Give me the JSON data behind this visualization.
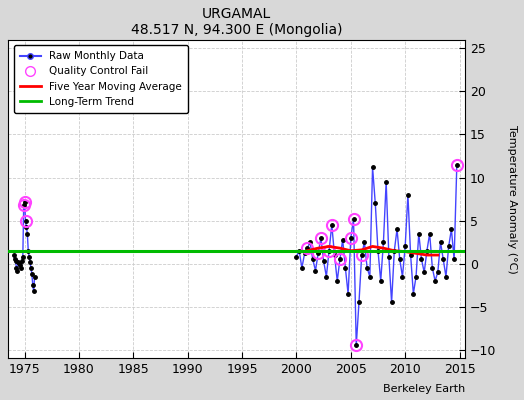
{
  "title": "URGAMAL",
  "subtitle": "48.517 N, 94.300 E (Mongolia)",
  "ylabel": "Temperature Anomaly (°C)",
  "xlabel_credit": "Berkeley Earth",
  "xlim": [
    1973.5,
    2015.5
  ],
  "ylim": [
    -11,
    26
  ],
  "yticks_right": [
    -10,
    -5,
    0,
    5,
    10,
    15,
    20,
    25
  ],
  "xticks": [
    1975,
    1980,
    1985,
    1990,
    1995,
    2000,
    2005,
    2010,
    2015
  ],
  "plot_bg": "#ffffff",
  "fig_bg": "#d8d8d8",
  "grid_color": "#cccccc",
  "raw_line_color": "#4444ff",
  "raw_marker_color": "#000000",
  "qc_fail_color": "#ff44ff",
  "moving_avg_color": "#ff0000",
  "trend_color": "#00bb00",
  "trend_y": 1.5,
  "early_years": [
    1974.0,
    1974.083,
    1974.167,
    1974.25,
    1974.333,
    1974.417,
    1974.5,
    1974.583,
    1974.667,
    1974.75,
    1974.833,
    1974.917,
    1975.0,
    1975.083,
    1975.167,
    1975.25,
    1975.333,
    1975.417,
    1975.5,
    1975.583,
    1975.667,
    1975.75,
    1975.833,
    1975.917
  ],
  "early_vals": [
    1.0,
    0.5,
    0.3,
    -0.5,
    -0.8,
    0.2,
    0.1,
    -0.2,
    -0.5,
    0.3,
    0.8,
    6.8,
    7.2,
    5.0,
    4.2,
    3.5,
    1.5,
    0.8,
    0.2,
    -0.5,
    -1.2,
    -2.5,
    -3.2,
    -1.5
  ],
  "qc_early_years": [
    1974.917,
    1975.0,
    1975.083
  ],
  "qc_early_vals": [
    6.8,
    7.2,
    5.0
  ],
  "main_years": [
    2000.0,
    2000.25,
    2000.5,
    2000.75,
    2001.0,
    2001.25,
    2001.5,
    2001.75,
    2002.0,
    2002.25,
    2002.5,
    2002.75,
    2003.0,
    2003.25,
    2003.5,
    2003.75,
    2004.0,
    2004.25,
    2004.5,
    2004.75,
    2005.0,
    2005.25,
    2005.5,
    2005.75,
    2006.0,
    2006.25,
    2006.5,
    2006.75,
    2007.0,
    2007.25,
    2007.5,
    2007.75,
    2008.0,
    2008.25,
    2008.5,
    2008.75,
    2009.0,
    2009.25,
    2009.5,
    2009.75,
    2010.0,
    2010.25,
    2010.5,
    2010.75,
    2011.0,
    2011.25,
    2011.5,
    2011.75,
    2012.0,
    2012.25,
    2012.5,
    2012.75,
    2013.0,
    2013.25,
    2013.5,
    2013.75,
    2014.0,
    2014.25,
    2014.5,
    2014.75
  ],
  "main_vals": [
    0.8,
    1.5,
    -0.5,
    1.2,
    1.8,
    2.5,
    0.5,
    -0.8,
    1.2,
    3.0,
    0.3,
    -1.5,
    1.5,
    4.5,
    1.0,
    -2.0,
    0.5,
    2.8,
    -0.5,
    -3.5,
    3.0,
    5.2,
    -9.5,
    -4.5,
    1.0,
    2.5,
    -0.5,
    -1.5,
    11.2,
    7.0,
    1.5,
    -2.0,
    2.5,
    9.5,
    0.8,
    -4.5,
    1.5,
    4.0,
    0.5,
    -1.5,
    2.0,
    8.0,
    1.0,
    -3.5,
    -1.5,
    3.5,
    0.5,
    -1.0,
    1.5,
    3.5,
    -0.5,
    -2.0,
    -1.0,
    2.5,
    0.5,
    -1.5,
    2.0,
    4.0,
    0.5,
    11.5
  ],
  "qc_main_years": [
    2001.0,
    2002.0,
    2002.25,
    2003.0,
    2003.25,
    2004.0,
    2005.0,
    2005.25,
    2005.5,
    2006.0,
    2014.75
  ],
  "qc_main_vals": [
    1.8,
    1.2,
    3.0,
    1.5,
    4.5,
    0.5,
    3.0,
    5.2,
    -9.5,
    1.0,
    11.5
  ],
  "moving_avg_years": [
    2001.0,
    2002.0,
    2003.0,
    2004.0,
    2005.0,
    2006.0,
    2007.0,
    2008.0,
    2009.0,
    2010.0,
    2011.0,
    2012.0,
    2013.0
  ],
  "moving_avg_vals": [
    1.5,
    1.8,
    2.0,
    1.8,
    1.5,
    1.6,
    2.0,
    1.8,
    1.5,
    1.4,
    1.2,
    1.0,
    1.0
  ]
}
